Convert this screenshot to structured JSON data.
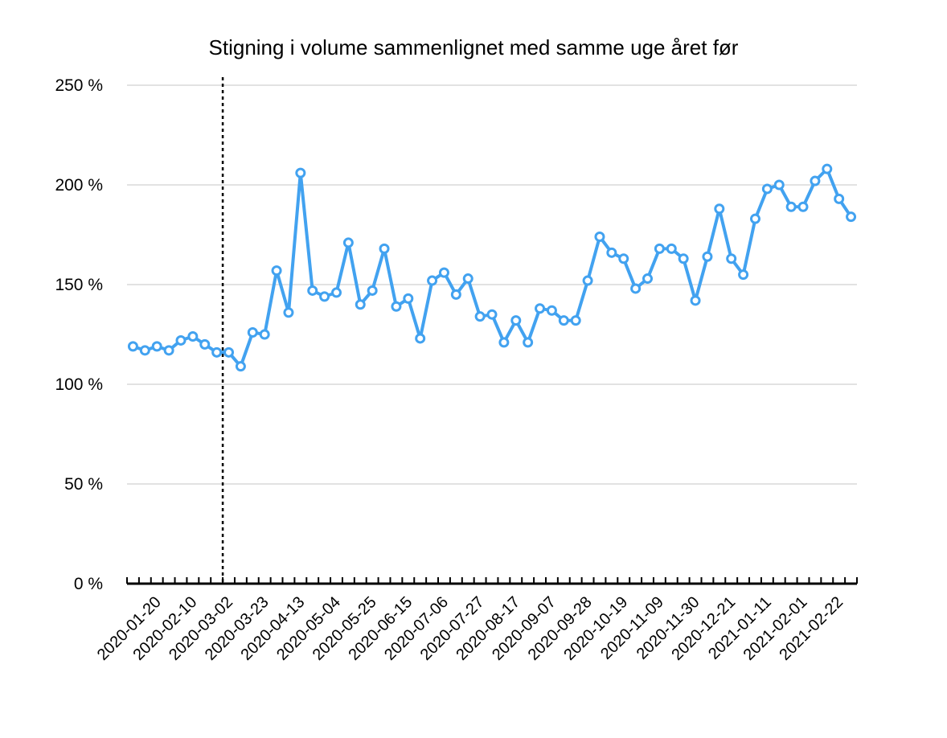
{
  "chart_data": {
    "type": "line",
    "title": "Stigning i volume sammenlignet med samme uge året før",
    "xlabel": "",
    "ylabel": "",
    "ylim": [
      0,
      250
    ],
    "y_ticks": [
      {
        "value": 0,
        "label": "0 %"
      },
      {
        "value": 50,
        "label": "50 %"
      },
      {
        "value": 100,
        "label": "100 %"
      },
      {
        "value": 150,
        "label": "150 %"
      },
      {
        "value": 200,
        "label": "200 %"
      },
      {
        "value": 250,
        "label": "250 %"
      }
    ],
    "x_tick_labels": [
      "2020-01-20",
      "2020-02-10",
      "2020-03-02",
      "2020-03-23",
      "2020-04-13",
      "2020-05-04",
      "2020-05-25",
      "2020-06-15",
      "2020-07-06",
      "2020-07-27",
      "2020-08-17",
      "2020-09-07",
      "2020-09-28",
      "2020-10-19",
      "2020-11-09",
      "2020-11-30",
      "2020-12-21",
      "2021-01-11",
      "2021-02-01",
      "2021-02-22"
    ],
    "grid": true,
    "vline_after_week": "2020-02-24",
    "series_color": "#42a2f0",
    "values": [
      119,
      117,
      119,
      117,
      122,
      124,
      120,
      116,
      116,
      109,
      126,
      125,
      157,
      136,
      206,
      147,
      144,
      146,
      171,
      140,
      147,
      168,
      139,
      143,
      123,
      152,
      156,
      145,
      153,
      134,
      135,
      121,
      132,
      121,
      138,
      137,
      132,
      132,
      152,
      174,
      166,
      163,
      148,
      153,
      168,
      168,
      163,
      142,
      164,
      188,
      163,
      155,
      183,
      198,
      200,
      189,
      189,
      202,
      208,
      193,
      184
    ]
  }
}
